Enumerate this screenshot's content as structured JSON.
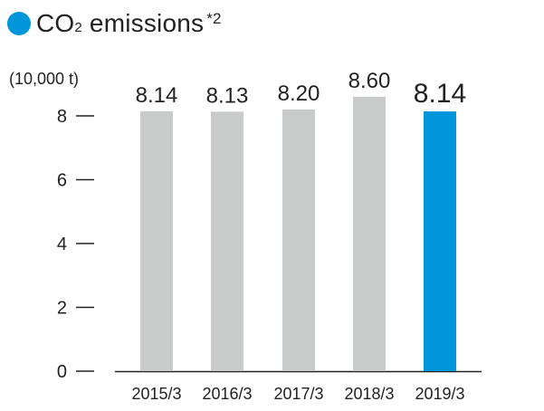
{
  "title": {
    "text": "CO",
    "sub": "2",
    "rest": " emissions",
    "sup": "*2"
  },
  "colors": {
    "bar": "#c9caca",
    "highlight": "#0096da",
    "axis": "#222222",
    "dot": "#0096da"
  },
  "chart_data": {
    "type": "bar",
    "title": "CO2 emissions *2",
    "unit": "(10,000 t)",
    "categories": [
      "2015/3",
      "2016/3",
      "2017/3",
      "2018/3",
      "2019/3"
    ],
    "values": [
      8.14,
      8.13,
      8.2,
      8.6,
      8.14
    ],
    "value_labels": [
      "8.14",
      "8.13",
      "8.20",
      "8.60",
      "8.14"
    ],
    "highlight_index": 4,
    "ylim": [
      0,
      8
    ],
    "yticks": [
      0,
      2,
      4,
      6,
      8
    ],
    "grid": false,
    "legend": "none"
  }
}
